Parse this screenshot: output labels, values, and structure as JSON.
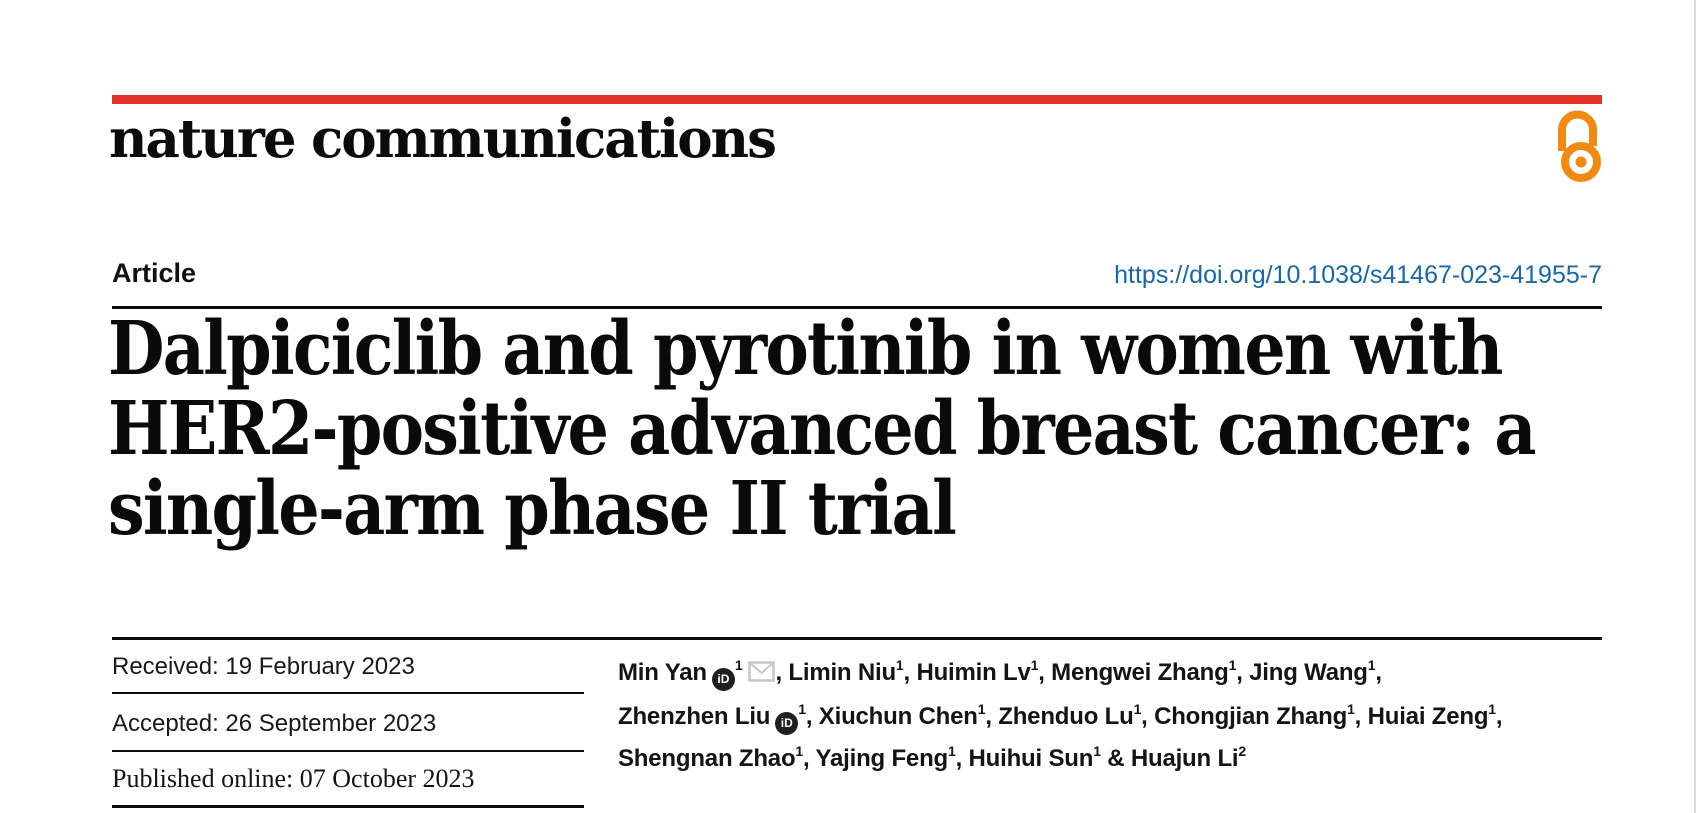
{
  "masthead": {
    "wordmark": "nature communications",
    "accent_red": "#e4332a",
    "open_access_orange": "#f08a12"
  },
  "article_header": {
    "type_label": "Article",
    "doi": "https://doi.org/10.1038/s41467-023-41955-7",
    "doi_color": "#1668a8",
    "title_lines": [
      "Dalpiciclib and pyrotinib in women with",
      "HER2-positive advanced breast cancer: a",
      "single-arm phase II trial"
    ]
  },
  "history": {
    "received": "Received: 19 February 2023",
    "accepted": "Accepted: 26 September 2023",
    "published": "Published online: 07 October 2023"
  },
  "authors": {
    "orcid_label": "iD",
    "lines": [
      [
        {
          "t": "Min Yan"
        },
        {
          "i": "orcid"
        },
        {
          "s": "1"
        },
        {
          "i": "mail"
        },
        {
          "t": ", Limin Niu"
        },
        {
          "s": "1"
        },
        {
          "t": ", Huimin Lv"
        },
        {
          "s": "1"
        },
        {
          "t": ", Mengwei Zhang"
        },
        {
          "s": "1"
        },
        {
          "t": ", Jing Wang"
        },
        {
          "s": "1"
        },
        {
          "t": ","
        }
      ],
      [
        {
          "t": "Zhenzhen Liu"
        },
        {
          "i": "orcid"
        },
        {
          "s": "1"
        },
        {
          "t": ", Xiuchun Chen"
        },
        {
          "s": "1"
        },
        {
          "t": ", Zhenduo Lu"
        },
        {
          "s": "1"
        },
        {
          "t": ", Chongjian Zhang"
        },
        {
          "s": "1"
        },
        {
          "t": ", Huiai Zeng"
        },
        {
          "s": "1"
        },
        {
          "t": ","
        }
      ],
      [
        {
          "t": "Shengnan Zhao"
        },
        {
          "s": "1"
        },
        {
          "t": ", Yajing Feng"
        },
        {
          "s": "1"
        },
        {
          "t": ", Huihui Sun"
        },
        {
          "s": "1"
        },
        {
          "t": " & Huajun Li"
        },
        {
          "s": "2"
        }
      ]
    ]
  }
}
